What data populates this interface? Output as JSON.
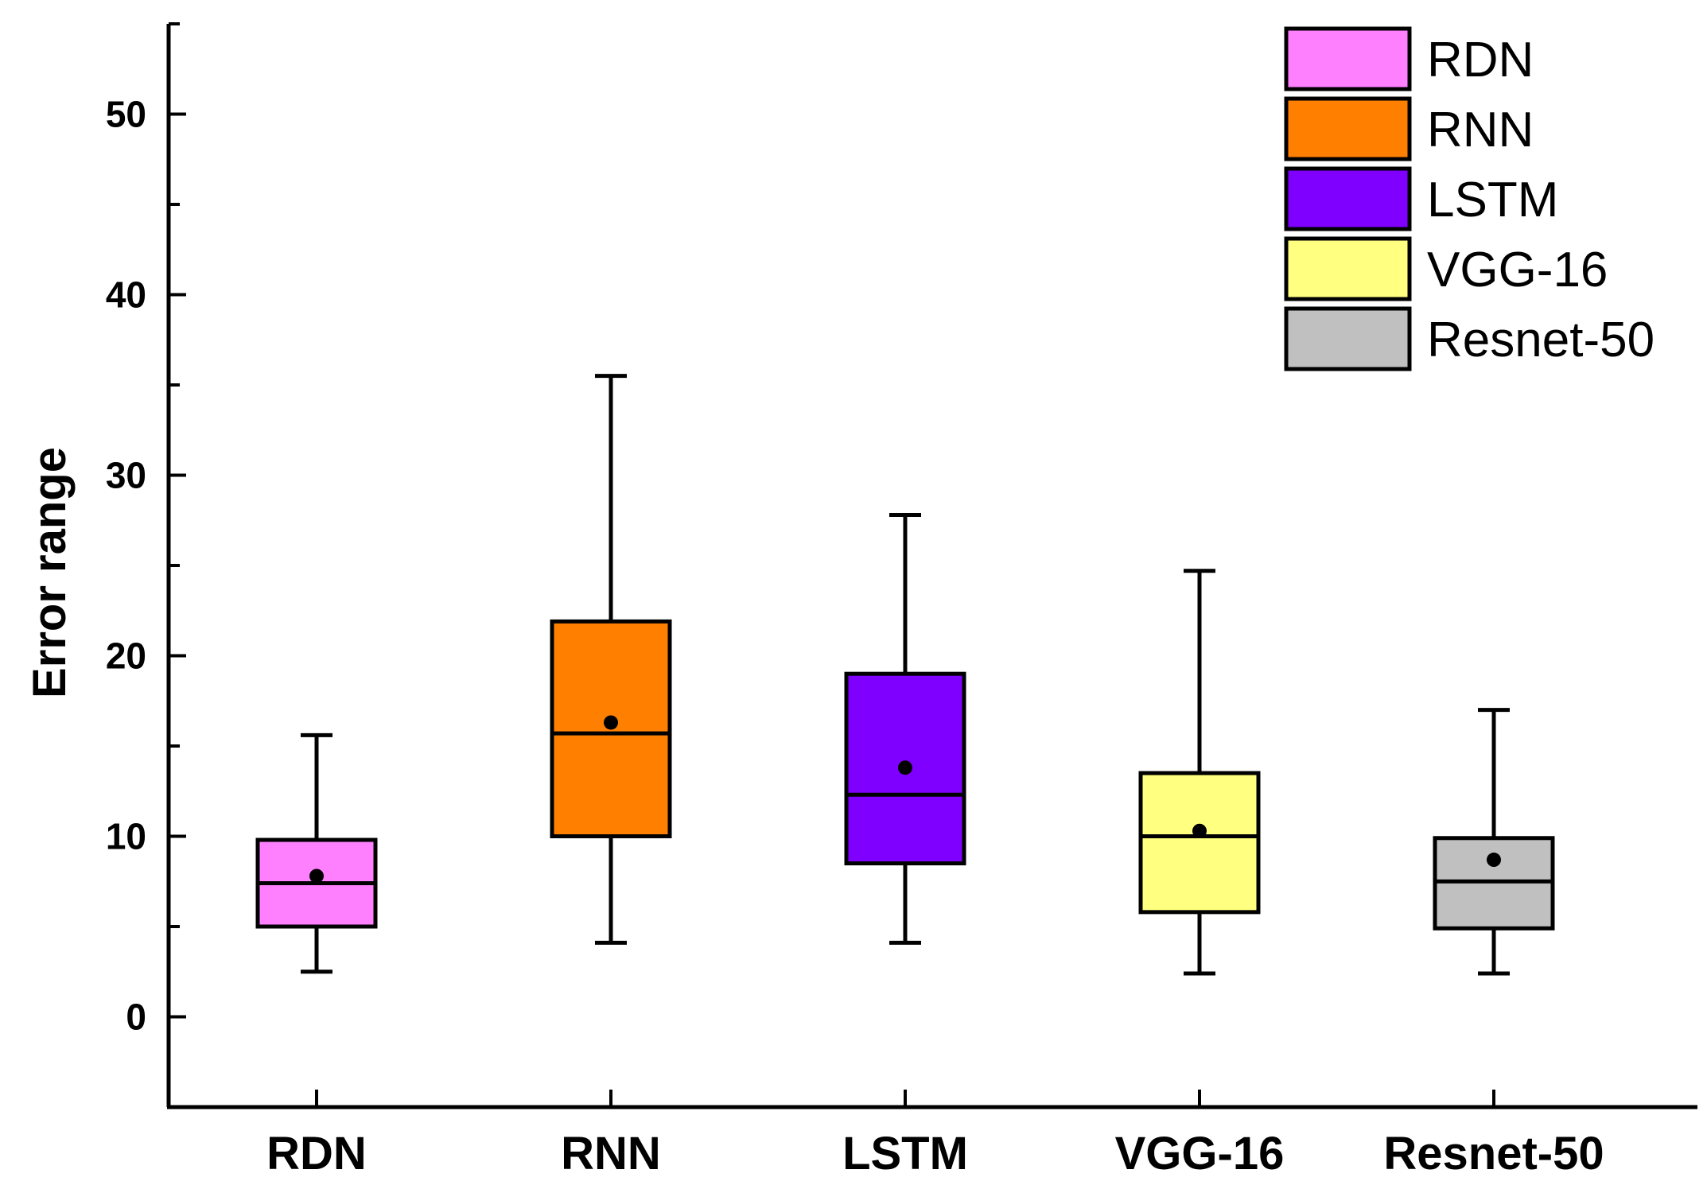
{
  "chart_data": {
    "type": "box",
    "title": "",
    "xlabel": "",
    "ylabel": "Error range",
    "ylim": [
      -5,
      55
    ],
    "yticks": [
      0,
      10,
      20,
      30,
      40,
      50
    ],
    "categories": [
      "RDN",
      "RNN",
      "LSTM",
      "VGG-16",
      "Resnet-50"
    ],
    "series": [
      {
        "name": "RDN",
        "color": "#ff80ff",
        "whisker_low": 2.5,
        "q1": 5.0,
        "median": 7.4,
        "q3": 9.8,
        "whisker_high": 15.6,
        "mean": 7.8
      },
      {
        "name": "RNN",
        "color": "#ff8000",
        "whisker_low": 4.1,
        "q1": 10.0,
        "median": 15.7,
        "q3": 21.9,
        "whisker_high": 35.5,
        "mean": 16.3
      },
      {
        "name": "LSTM",
        "color": "#8000ff",
        "whisker_low": 4.1,
        "q1": 8.5,
        "median": 12.3,
        "q3": 19.0,
        "whisker_high": 27.8,
        "mean": 13.8
      },
      {
        "name": "VGG-16",
        "color": "#ffff80",
        "whisker_low": 2.4,
        "q1": 5.8,
        "median": 10.0,
        "q3": 13.5,
        "whisker_high": 24.7,
        "mean": 10.3
      },
      {
        "name": "Resnet-50",
        "color": "#c0c0c0",
        "whisker_low": 2.4,
        "q1": 4.9,
        "median": 7.5,
        "q3": 9.9,
        "whisker_high": 17.0,
        "mean": 8.7
      }
    ],
    "legend": {
      "placement": "top-right",
      "entries": [
        "RDN",
        "RNN",
        "LSTM",
        "VGG-16",
        "Resnet-50"
      ]
    }
  }
}
